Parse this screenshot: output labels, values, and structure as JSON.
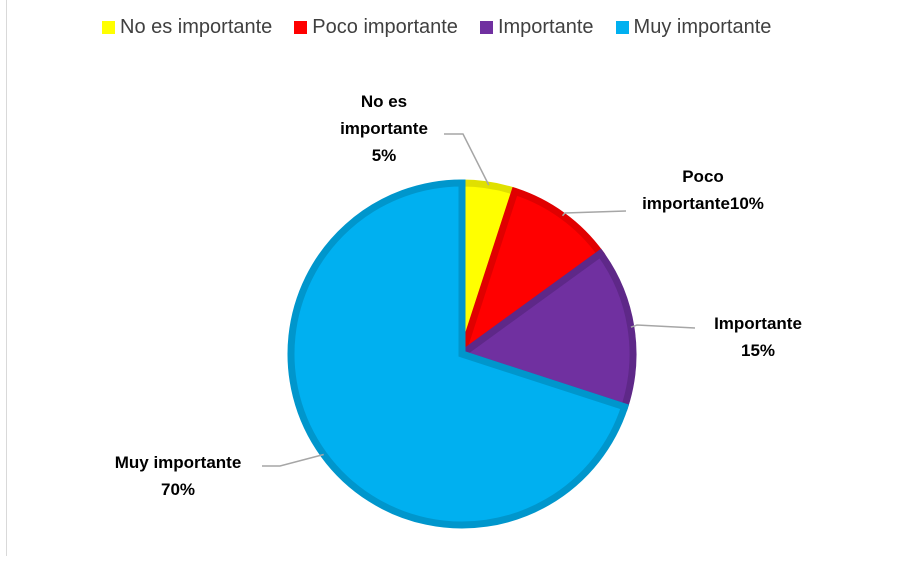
{
  "chart_data": {
    "type": "pie",
    "title": "",
    "legend_position": "top",
    "slices": [
      {
        "name": "No es importante",
        "value": 5,
        "color": "#ffff00",
        "border": "#e0e000",
        "label_lines": [
          "No es",
          "importante",
          "5%"
        ]
      },
      {
        "name": "Poco importante",
        "value": 10,
        "color": "#ff0000",
        "border": "#e00000",
        "label_lines": [
          "Poco",
          "importante10%"
        ]
      },
      {
        "name": "Importante",
        "value": 15,
        "color": "#7030a0",
        "border": "#5e2888",
        "label_lines": [
          "Importante",
          "15%"
        ]
      },
      {
        "name": "Muy importante",
        "value": 70,
        "color": "#00b0f0",
        "border": "#0096cc",
        "label_lines": [
          "Muy importante",
          "70%"
        ]
      }
    ]
  }
}
